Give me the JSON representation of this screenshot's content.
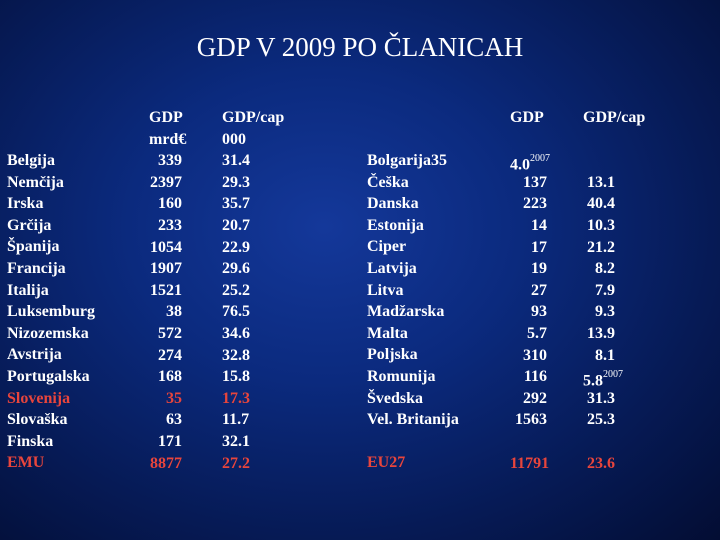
{
  "title": "GDP V 2009 PO ČLANICAH",
  "left": {
    "header_gdp": [
      "GDP",
      "mrd€"
    ],
    "header_gdpcap": [
      "GDP/cap",
      "000"
    ],
    "rows": [
      {
        "country": "Belgija",
        "gdp": "339",
        "gdpcap": "31.4"
      },
      {
        "country": "Nemčija",
        "gdp": "2397",
        "gdpcap": "29.3"
      },
      {
        "country": "Irska",
        "gdp": "160",
        "gdpcap": "35.7"
      },
      {
        "country": "Grčija",
        "gdp": "233",
        "gdpcap": "20.7"
      },
      {
        "country": "Španija",
        "gdp": "1054",
        "gdpcap": "22.9"
      },
      {
        "country": "Francija",
        "gdp": "1907",
        "gdpcap": "29.6"
      },
      {
        "country": "Italija",
        "gdp": "1521",
        "gdpcap": "25.2"
      },
      {
        "country": "Luksemburg",
        "gdp": "38",
        "gdpcap": "76.5"
      },
      {
        "country": "Nizozemska",
        "gdp": "572",
        "gdpcap": "34.6"
      },
      {
        "country": "Avstrija",
        "gdp": "274",
        "gdpcap": "32.8"
      },
      {
        "country": "Portugalska",
        "gdp": "168",
        "gdpcap": "15.8"
      },
      {
        "country": "Slovenija",
        "gdp": "35",
        "gdpcap": "17.3",
        "highlight": true
      },
      {
        "country": "Slovaška",
        "gdp": "63",
        "gdpcap": "11.7"
      },
      {
        "country": "Finska",
        "gdp": "171",
        "gdpcap": "32.1"
      },
      {
        "country": "EMU",
        "gdp": "8877",
        "gdpcap": "27.2",
        "highlight": true
      }
    ]
  },
  "right": {
    "header_gdp": "GDP",
    "header_gdpcap": "GDP/cap",
    "rows": [
      {
        "country": "Bolgarija35",
        "gdp": "4.0",
        "gdp_sup": "2007",
        "gdpcap": ""
      },
      {
        "country": "Češka",
        "gdp": "137",
        "gdpcap": "13.1"
      },
      {
        "country": "Danska",
        "gdp": "223",
        "gdpcap": "40.4"
      },
      {
        "country": "Estonija",
        "gdp": "14",
        "gdpcap": "10.3"
      },
      {
        "country": "Ciper",
        "gdp": "17",
        "gdpcap": "21.2"
      },
      {
        "country": "Latvija",
        "gdp": "19",
        "gdpcap": "8.2"
      },
      {
        "country": "Litva",
        "gdp": "27",
        "gdpcap": "7.9"
      },
      {
        "country": "Madžarska",
        "gdp": "93",
        "gdpcap": "9.3"
      },
      {
        "country": "Malta",
        "gdp": "5.7",
        "gdpcap": "13.9"
      },
      {
        "country": "Poljska",
        "gdp": "310",
        "gdpcap": "8.1"
      },
      {
        "country": "Romunija",
        "gdp": "116",
        "gdpcap": "5.8",
        "gdpcap_sup": "2007"
      },
      {
        "country": "Švedska",
        "gdp": "292",
        "gdpcap": "31.3"
      },
      {
        "country": "Vel. Britanija",
        "gdp": "1563",
        "gdpcap": "25.3"
      }
    ],
    "total": {
      "country": "EU27",
      "gdp": "11791",
      "gdpcap": "23.6"
    }
  }
}
